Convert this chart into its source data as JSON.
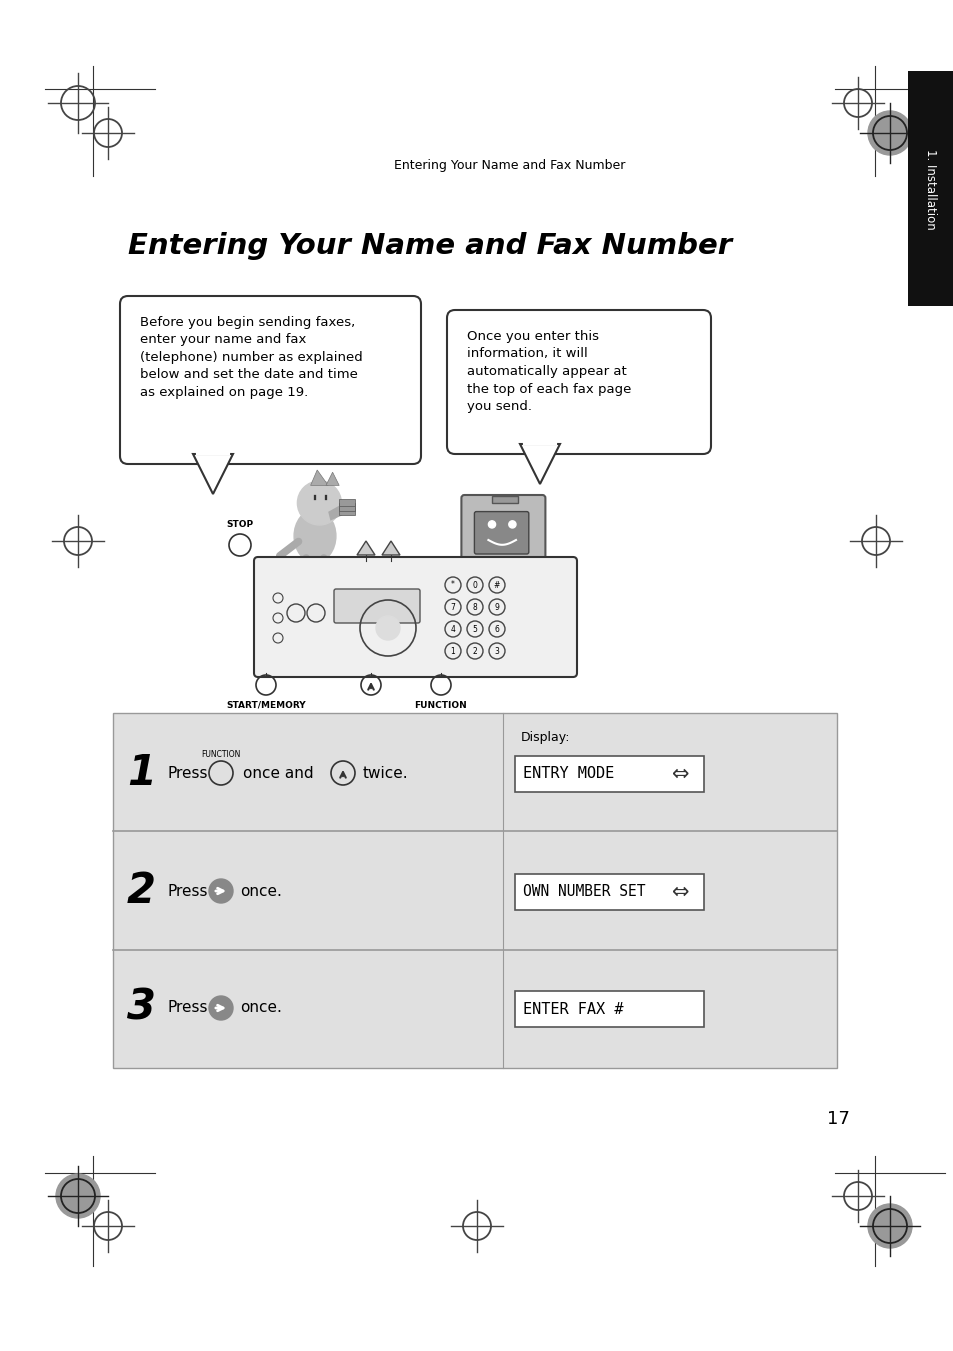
{
  "bg_color": "#ffffff",
  "title": "Entering Your Name and Fax Number",
  "header_text": "Entering Your Name and Fax Number",
  "section_tab": "1. Installation",
  "bubble1_text": "Before you begin sending faxes,\nenter your name and fax\n(telephone) number as explained\nbelow and set the date and time\nas explained on page 19.",
  "bubble2_text": "Once you enter this\ninformation, it will\nautomatically appear at\nthe top of each fax page\nyou send.",
  "step1_num": "1",
  "step1_display": "Display:",
  "step1_display_val": "ENTRY MODE",
  "step1_func_label": "FUNCTION",
  "step2_num": "2",
  "step2_display_val": "OWN NUMBER SET",
  "step3_num": "3",
  "step3_display_val": "ENTER FAX #",
  "page_num": "17",
  "gray_bg": "#e0e0e0",
  "dark_color": "#000000",
  "mid_gray": "#888888",
  "stop_label": "STOP",
  "start_label": "START/MEMORY",
  "func_label": "FUNCTION"
}
